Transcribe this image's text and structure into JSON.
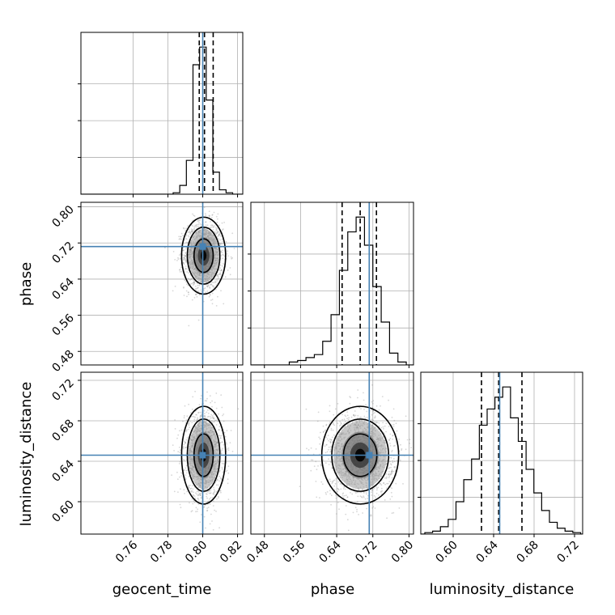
{
  "chart_data": {
    "type": "corner",
    "parameters": [
      "geocent_time",
      "phase",
      "luminosity_distance"
    ],
    "truths": {
      "geocent_time": 0.8,
      "phase": 0.712,
      "luminosity_distance": 0.646
    },
    "quantiles": {
      "geocent_time": [
        0.798,
        0.801,
        0.806
      ],
      "phase": [
        0.652,
        0.692,
        0.728
      ],
      "luminosity_distance": [
        0.628,
        0.645,
        0.668
      ]
    },
    "ranges": {
      "geocent_time": [
        0.73,
        0.823
      ],
      "phase": [
        0.45,
        0.81
      ],
      "luminosity_distance": [
        0.568,
        0.728
      ]
    },
    "ticks": {
      "geocent_time": [
        "0.76",
        "0.78",
        "0.80",
        "0.82"
      ],
      "phase": [
        "0.48",
        "0.56",
        "0.64",
        "0.72",
        "0.80"
      ],
      "luminosity_distance": [
        "0.60",
        "0.64",
        "0.68",
        "0.72"
      ]
    },
    "histograms": {
      "geocent_time": {
        "edges": [
          0.783,
          0.7868,
          0.7906,
          0.7944,
          0.7982,
          0.802,
          0.8058,
          0.8096,
          0.8134,
          0.8172
        ],
        "counts": [
          0.01,
          0.06,
          0.23,
          0.88,
          1.0,
          0.64,
          0.15,
          0.03,
          0.01
        ]
      },
      "phase": {
        "edges": [
          0.535,
          0.5535,
          0.572,
          0.5905,
          0.609,
          0.6275,
          0.646,
          0.6645,
          0.683,
          0.7015,
          0.72,
          0.7385,
          0.757,
          0.7755,
          0.794
        ],
        "counts": [
          0.02,
          0.03,
          0.05,
          0.07,
          0.16,
          0.34,
          0.64,
          0.9,
          1.0,
          0.81,
          0.53,
          0.29,
          0.08,
          0.02
        ]
      },
      "luminosity_distance": {
        "edges": [
          0.572,
          0.5797,
          0.5874,
          0.5951,
          0.6028,
          0.6105,
          0.6182,
          0.6259,
          0.6336,
          0.6413,
          0.649,
          0.6567,
          0.6644,
          0.6721,
          0.6798,
          0.6875,
          0.6952,
          0.7029,
          0.7106,
          0.7183,
          0.726
        ],
        "counts": [
          0.01,
          0.02,
          0.05,
          0.1,
          0.22,
          0.37,
          0.51,
          0.74,
          0.85,
          0.93,
          1.0,
          0.79,
          0.63,
          0.44,
          0.28,
          0.16,
          0.08,
          0.04,
          0.02,
          0.01
        ]
      }
    },
    "density_2d": [
      {
        "x": "geocent_time",
        "y": "phase",
        "mean": [
          0.8005,
          0.692
        ],
        "sd": [
          0.0055,
          0.037
        ],
        "corr": 0.0
      },
      {
        "x": "geocent_time",
        "y": "luminosity_distance",
        "mean": [
          0.8005,
          0.646
        ],
        "sd": [
          0.0055,
          0.021
        ],
        "corr": 0.0
      },
      {
        "x": "phase",
        "y": "luminosity_distance",
        "mean": [
          0.692,
          0.646
        ],
        "sd": [
          0.037,
          0.021
        ],
        "corr": 0.0
      }
    ],
    "colors": {
      "truth": "#4682b4",
      "hist": "#000000",
      "grid": "#b0b0b0",
      "scatter": "#8c8c8c"
    },
    "grid": true
  }
}
